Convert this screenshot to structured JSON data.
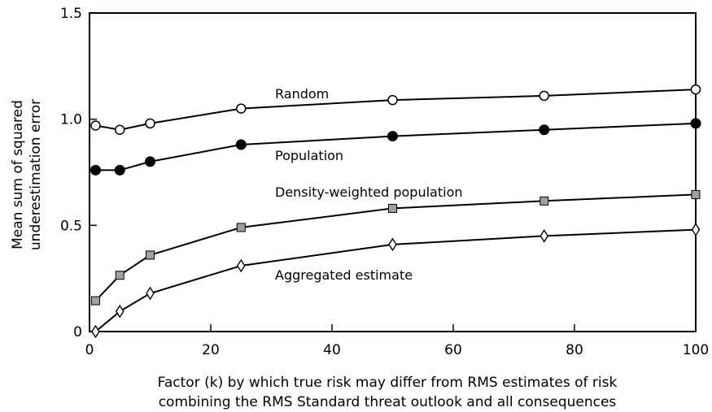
{
  "chart_data": {
    "type": "line",
    "title": "",
    "xlabel": [
      "Factor (k) by which true risk may differ from RMS estimates of risk",
      "combining the RMS Standard threat outlook and all consequences"
    ],
    "ylabel": [
      "Mean sum of squared",
      "underestimation error"
    ],
    "xlim": [
      0,
      100
    ],
    "ylim": [
      0,
      1.5
    ],
    "xticks": [
      0,
      20,
      40,
      60,
      80,
      100
    ],
    "xtick_labels": [
      "0",
      "20",
      "40",
      "60",
      "80",
      "100"
    ],
    "yticks": [
      0,
      0.5,
      1.0,
      1.5
    ],
    "ytick_labels": [
      "0",
      "0.5",
      "1.0",
      "1.5"
    ],
    "grid": false,
    "legend": "none",
    "x": [
      1,
      5,
      10,
      25,
      50,
      75,
      100
    ],
    "series": [
      {
        "name": "Random",
        "marker": "open-circle",
        "values": [
          0.97,
          0.95,
          0.98,
          1.05,
          1.09,
          1.11,
          1.14
        ]
      },
      {
        "name": "Population",
        "marker": "filled-circle",
        "values": [
          0.76,
          0.76,
          0.8,
          0.88,
          0.92,
          0.95,
          0.98
        ]
      },
      {
        "name": "Density-weighted population",
        "marker": "gray-square",
        "values": [
          0.145,
          0.265,
          0.36,
          0.49,
          0.58,
          0.615,
          0.645
        ]
      },
      {
        "name": "Aggregated estimate",
        "marker": "open-diamond",
        "values": [
          0.0,
          0.095,
          0.18,
          0.31,
          0.41,
          0.45,
          0.48
        ]
      }
    ],
    "colors": {
      "line": "#000000",
      "marker_fill_gray": "#a0a0a0",
      "marker_fill_black": "#000000",
      "marker_fill_white": "#ffffff"
    }
  }
}
